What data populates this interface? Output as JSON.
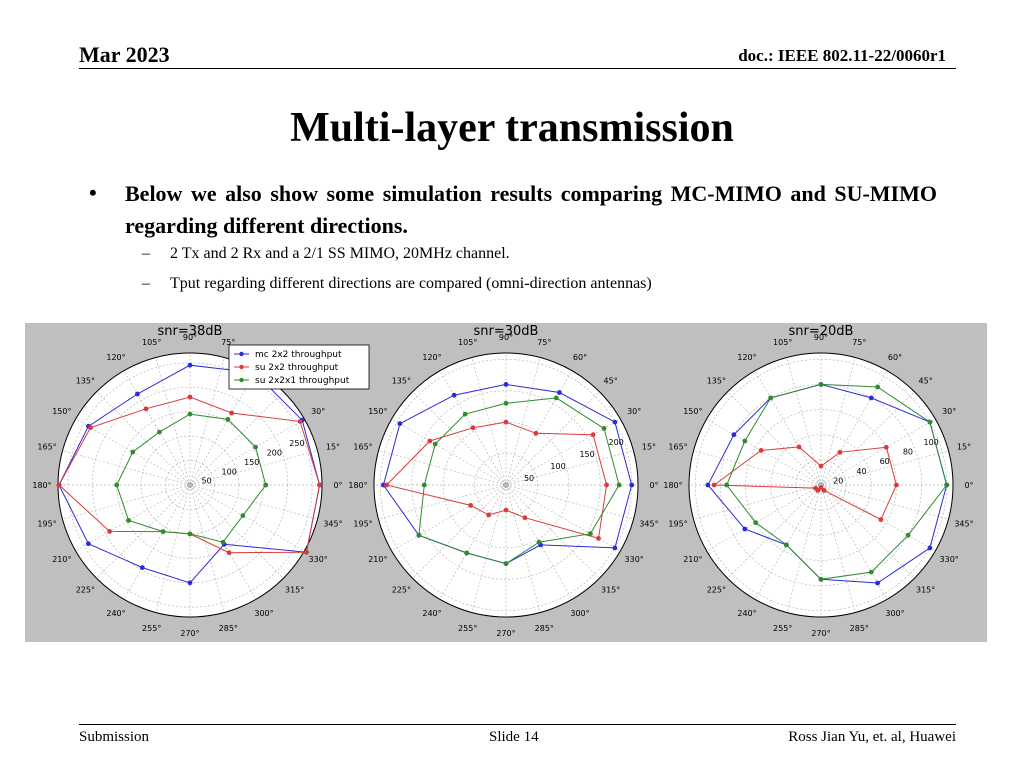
{
  "header": {
    "date": "Mar 2023",
    "doc": "doc.: IEEE 802.11-22/0060r1"
  },
  "title": "Multi-layer transmission",
  "bullet": {
    "symbol": "•",
    "text": "Below we also show some simulation results comparing MC-MIMO and SU-MIMO regarding different directions.",
    "subs": [
      {
        "dash": "–",
        "text": "2 Tx and 2 Rx and a 2/1 SS MIMO, 20MHz channel."
      },
      {
        "dash": "–",
        "text": "Tput regarding different directions are compared (omni-direction antennas)"
      }
    ]
  },
  "footer": {
    "left": "Submission",
    "center": "Slide 14",
    "right": "Ross Jian Yu, et. al, Huawei"
  },
  "colors": {
    "mc": "#2b2bd9",
    "su2x2": "#d93b3b",
    "su2x2x1": "#2e8b2e",
    "plot_bg": "#bfbfbf"
  },
  "chart_data": [
    {
      "type": "polar-line",
      "title": "snr=38dB",
      "angle_ticks": [
        "0°",
        "15°",
        "30°",
        "45°",
        "60°",
        "75°",
        "90°",
        "105°",
        "120°",
        "135°",
        "150°",
        "165°",
        "180°",
        "195°",
        "210°",
        "225°",
        "240°",
        "255°",
        "270°",
        "285°",
        "300°",
        "315°",
        "330°",
        "345°"
      ],
      "r_ticks": [
        50,
        100,
        150,
        200,
        250
      ],
      "rmax": 270,
      "legend": [
        "mc 2x2 throughput",
        "su 2x2 throughput",
        "su 2x2x1 throughput"
      ],
      "legend_position": "upper-right",
      "angles": [
        0,
        30,
        60,
        90,
        120,
        150,
        180,
        210,
        240,
        270,
        300,
        330
      ],
      "series": [
        {
          "name": "mc 2x2 throughput",
          "values": [
            265,
            265,
            265,
            245,
            215,
            240,
            268,
            240,
            195,
            200,
            140,
            275
          ]
        },
        {
          "name": "su 2x2 throughput",
          "values": [
            265,
            260,
            170,
            180,
            180,
            235,
            268,
            190,
            110,
            100,
            160,
            275
          ]
        },
        {
          "name": "su 2x2x1 throughput",
          "values": [
            155,
            155,
            155,
            145,
            125,
            135,
            150,
            145,
            110,
            100,
            135,
            125
          ]
        }
      ]
    },
    {
      "type": "polar-line",
      "title": "snr=30dB",
      "angle_ticks": [
        "0°",
        "15°",
        "30°",
        "45°",
        "60°",
        "75°",
        "90°",
        "105°",
        "120°",
        "135°",
        "150°",
        "165°",
        "180°",
        "195°",
        "210°",
        "225°",
        "240°",
        "255°",
        "270°",
        "285°",
        "300°",
        "315°",
        "330°",
        "345°"
      ],
      "r_ticks": [
        50,
        100,
        150,
        200
      ],
      "rmax": 210,
      "legend": [],
      "angles": [
        0,
        30,
        60,
        90,
        120,
        150,
        180,
        210,
        240,
        270,
        300,
        330
      ],
      "series": [
        {
          "name": "mc 2x2 throughput",
          "values": [
            200,
            200,
            170,
            160,
            165,
            195,
            195,
            160,
            125,
            125,
            110,
            200
          ]
        },
        {
          "name": "su 2x2 throughput",
          "values": [
            160,
            160,
            95,
            100,
            105,
            140,
            190,
            65,
            55,
            40,
            60,
            170
          ]
        },
        {
          "name": "su 2x2x1 throughput",
          "values": [
            180,
            180,
            160,
            130,
            130,
            130,
            130,
            160,
            125,
            125,
            105,
            155
          ]
        }
      ]
    },
    {
      "type": "polar-line",
      "title": "snr=20dB",
      "angle_ticks": [
        "0°",
        "15°",
        "30°",
        "45°",
        "60°",
        "75°",
        "90°",
        "105°",
        "120°",
        "135°",
        "150°",
        "165°",
        "180°",
        "195°",
        "210°",
        "225°",
        "240°",
        "255°",
        "270°",
        "285°",
        "300°",
        "315°",
        "330°",
        "345°"
      ],
      "r_ticks": [
        20,
        40,
        60,
        80,
        100
      ],
      "rmax": 105,
      "legend": [],
      "angles": [
        0,
        30,
        60,
        90,
        120,
        150,
        180,
        210,
        240,
        270,
        300,
        330
      ],
      "series": [
        {
          "name": "mc 2x2 throughput",
          "values": [
            100,
            100,
            80,
            80,
            80,
            80,
            90,
            70,
            55,
            75,
            90,
            100
          ]
        },
        {
          "name": "su 2x2 throughput",
          "values": [
            60,
            60,
            30,
            15,
            35,
            55,
            85,
            5,
            5,
            2,
            5,
            55
          ]
        },
        {
          "name": "su 2x2x1 throughput",
          "values": [
            100,
            100,
            90,
            80,
            80,
            70,
            75,
            60,
            55,
            75,
            80,
            80
          ]
        }
      ]
    }
  ]
}
